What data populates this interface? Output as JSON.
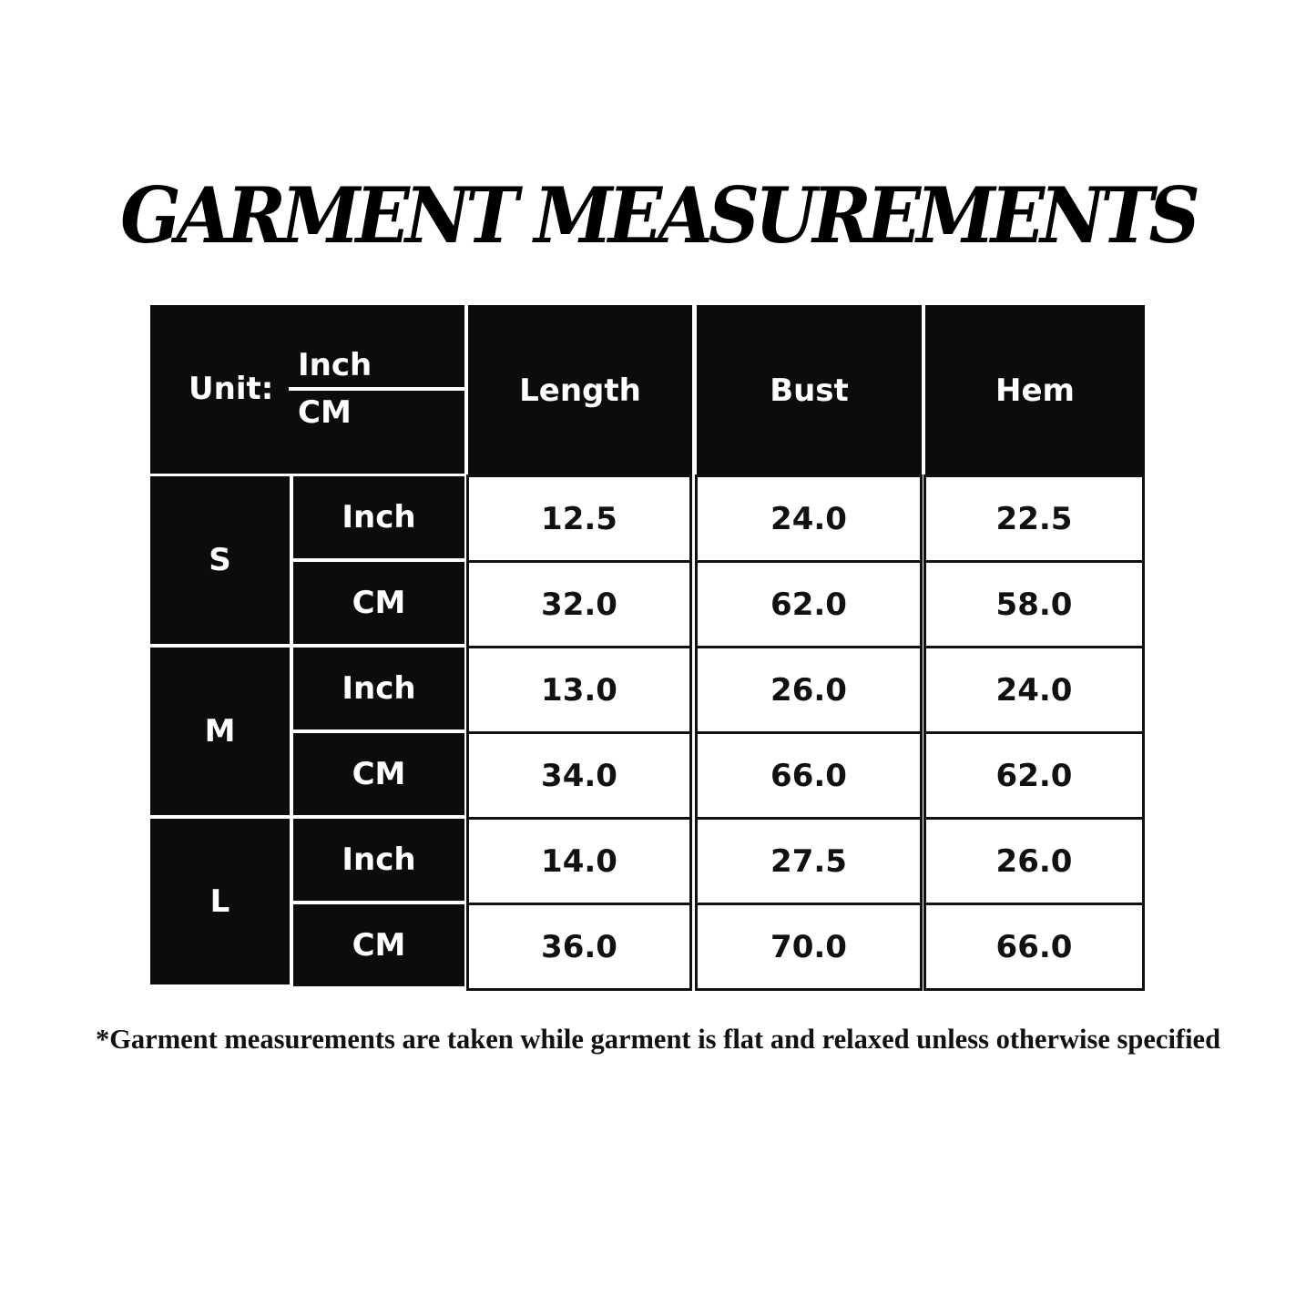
{
  "title": "GARMENT MEASUREMENTS",
  "table": {
    "unit_label": "Unit:",
    "unit_top": "Inch",
    "unit_bottom": "CM",
    "columns": [
      "Length",
      "Bust",
      "Hem"
    ],
    "sizes": [
      {
        "size": "S",
        "rows": [
          {
            "unit": "Inch",
            "values": [
              "12.5",
              "24.0",
              "22.5"
            ]
          },
          {
            "unit": "CM",
            "values": [
              "32.0",
              "62.0",
              "58.0"
            ]
          }
        ]
      },
      {
        "size": "M",
        "rows": [
          {
            "unit": "Inch",
            "values": [
              "13.0",
              "26.0",
              "24.0"
            ]
          },
          {
            "unit": "CM",
            "values": [
              "34.0",
              "66.0",
              "62.0"
            ]
          }
        ]
      },
      {
        "size": "L",
        "rows": [
          {
            "unit": "Inch",
            "values": [
              "14.0",
              "27.5",
              "26.0"
            ]
          },
          {
            "unit": "CM",
            "values": [
              "36.0",
              "70.0",
              "66.0"
            ]
          }
        ]
      }
    ]
  },
  "footnote": "*Garment measurements are taken while garment is flat and relaxed unless otherwise specified"
}
